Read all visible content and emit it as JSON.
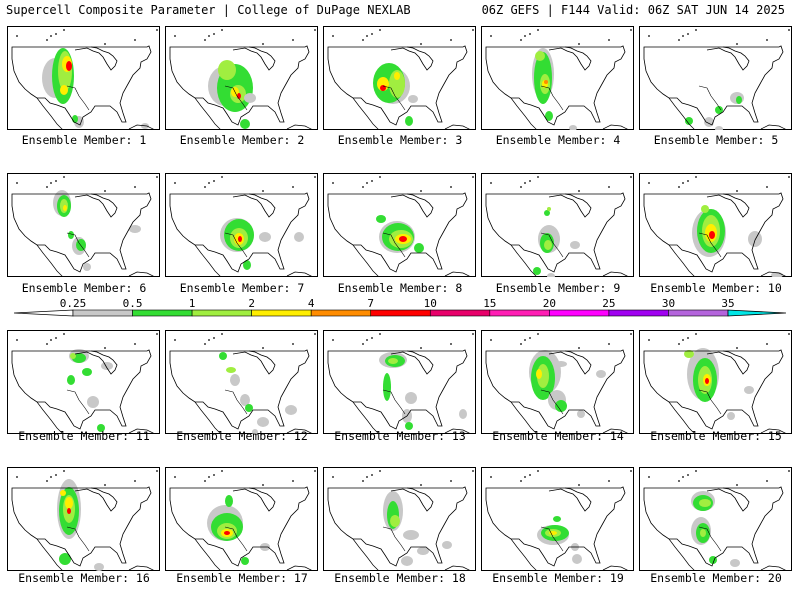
{
  "header": {
    "left_title": "Supercell Composite Parameter | College of DuPage NEXLAB",
    "right_title": "06Z GEFS | F144 Valid: 06Z SAT JUN 14 2025"
  },
  "colors": {
    "gray": "#c8c8c8",
    "green": "#33dd33",
    "lightgreen": "#a0ee40",
    "yellow": "#ffee00",
    "orange": "#ff8c00",
    "red": "#ff0000",
    "crimson": "#e8006a",
    "pink": "#ff1eb4",
    "magenta": "#ff00ff",
    "purple": "#a000f0",
    "lavender": "#b464dc",
    "cyan": "#00e6e6"
  },
  "colorbar": {
    "ticks": [
      "0.25",
      "0.5",
      "1",
      "2",
      "4",
      "7",
      "10",
      "15",
      "20",
      "25",
      "30",
      "35"
    ],
    "segment_colors": [
      "#c8c8c8",
      "#33dd33",
      "#a0ee40",
      "#ffee00",
      "#ff8c00",
      "#ff0000",
      "#e8006a",
      "#ff1eb4",
      "#ff00ff",
      "#a000f0",
      "#b464dc"
    ],
    "above_max_color": "#00e6e6"
  },
  "panels": [
    {
      "label": "Ensemble Member: 1"
    },
    {
      "label": "Ensemble Member: 2"
    },
    {
      "label": "Ensemble Member: 3"
    },
    {
      "label": "Ensemble Member: 4"
    },
    {
      "label": "Ensemble Member: 5"
    },
    {
      "label": "Ensemble Member: 6"
    },
    {
      "label": "Ensemble Member: 7"
    },
    {
      "label": "Ensemble Member: 8"
    },
    {
      "label": "Ensemble Member: 9"
    },
    {
      "label": "Ensemble Member: 10"
    },
    {
      "label": "Ensemble Member: 11"
    },
    {
      "label": "Ensemble Member: 12"
    },
    {
      "label": "Ensemble Member: 13"
    },
    {
      "label": "Ensemble Member: 14"
    },
    {
      "label": "Ensemble Member: 15"
    },
    {
      "label": "Ensemble Member: 16"
    },
    {
      "label": "Ensemble Member: 17"
    },
    {
      "label": "Ensemble Member: 18"
    },
    {
      "label": "Ensemble Member: 19"
    },
    {
      "label": "Ensemble Member: 20"
    }
  ]
}
